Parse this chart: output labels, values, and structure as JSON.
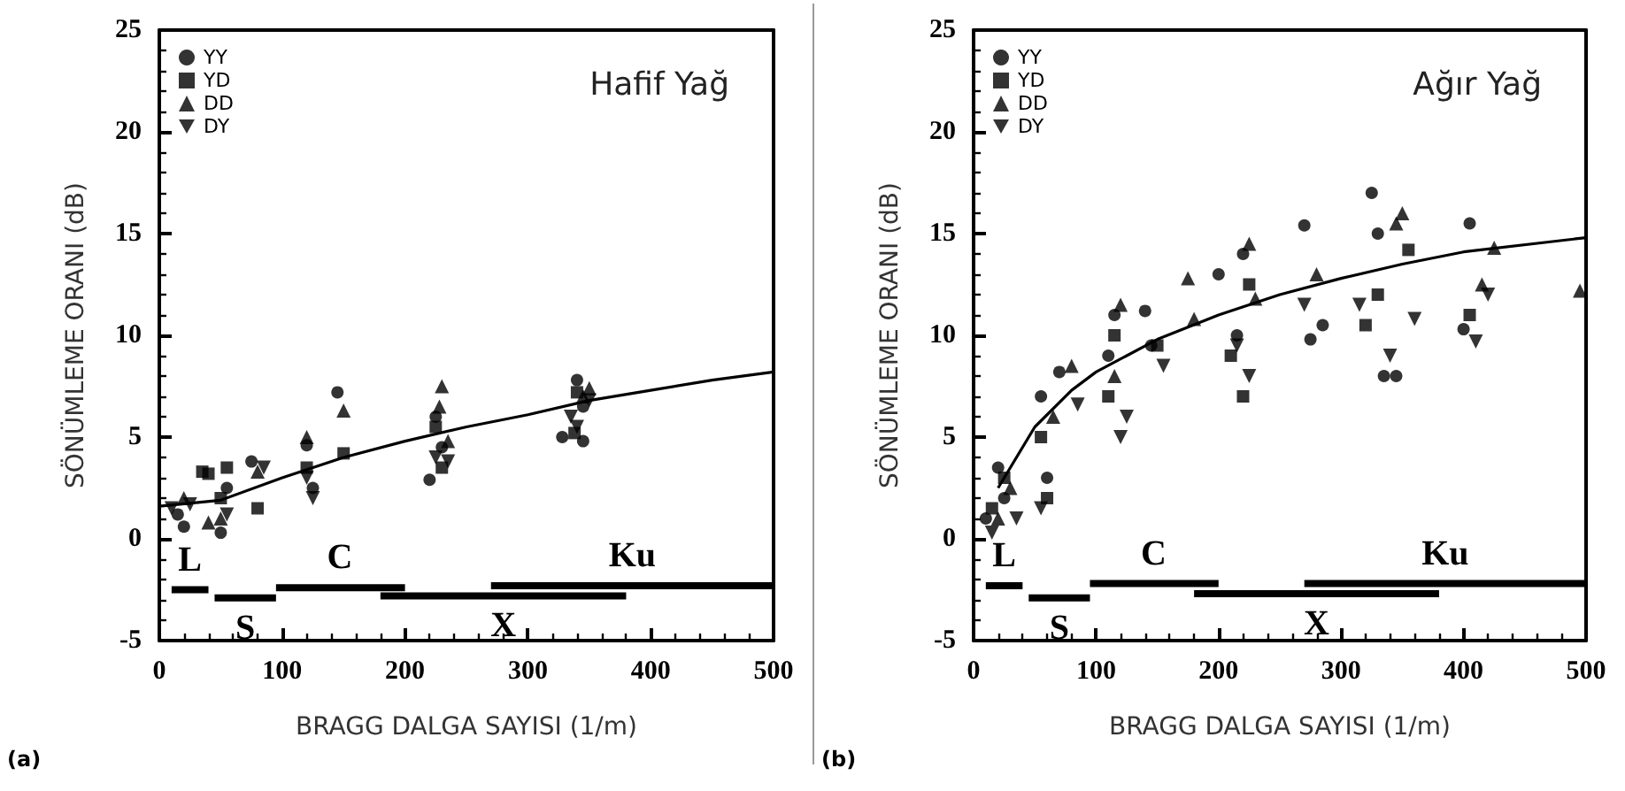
{
  "chart_data": [
    {
      "type": "scatter",
      "title": "Hafif Yağ",
      "xlabel": "BRAGG DALGA SAYISI (1/m)",
      "ylabel": "SÖNÜMLEME ORANI (dB)",
      "xlim": [
        0,
        500
      ],
      "ylim": [
        -5,
        25
      ],
      "xticks": [
        0,
        100,
        200,
        300,
        400,
        500
      ],
      "yticks": [
        -5,
        0,
        5,
        10,
        15,
        20,
        25
      ],
      "grid": false,
      "legend": "top left",
      "annotations": [
        "(a)",
        {
          "text": "L",
          "x": 25,
          "y": -2.5
        },
        {
          "text": "S",
          "x": 70,
          "y": -2.9
        },
        {
          "text": "C",
          "x": 147,
          "y": -2.4
        },
        {
          "text": "X",
          "x": 280,
          "y": -2.8
        },
        {
          "text": "Ku",
          "x": 385,
          "y": -2.3
        }
      ],
      "series": [
        {
          "name": "YY",
          "marker": "circle",
          "color": "#000000",
          "x": [
            15,
            20,
            50,
            55,
            75,
            120,
            125,
            145,
            220,
            225,
            230,
            328,
            340,
            345,
            345
          ],
          "values": [
            1.2,
            0.6,
            0.3,
            2.5,
            3.8,
            4.6,
            2.5,
            7.2,
            2.9,
            6.0,
            4.5,
            5.0,
            7.8,
            6.5,
            4.8
          ]
        },
        {
          "name": "YD",
          "marker": "square",
          "color": "#000000",
          "x": [
            35,
            40,
            50,
            55,
            80,
            120,
            150,
            225,
            230,
            340,
            338
          ],
          "values": [
            3.3,
            3.2,
            2.0,
            3.5,
            1.5,
            3.5,
            4.2,
            5.5,
            3.5,
            7.2,
            5.2
          ]
        },
        {
          "name": "DD",
          "marker": "triangle",
          "color": "#000000",
          "x": [
            20,
            40,
            50,
            80,
            120,
            150,
            230,
            228,
            235,
            345,
            350
          ],
          "values": [
            2.0,
            0.8,
            1.0,
            3.3,
            5.0,
            6.3,
            7.5,
            6.5,
            4.8,
            7.0,
            7.4
          ]
        },
        {
          "name": "DY",
          "marker": "triangle-down",
          "color": "#000000",
          "x": [
            10,
            25,
            55,
            85,
            120,
            125,
            225,
            235,
            335,
            350,
            340
          ],
          "values": [
            1.5,
            1.7,
            1.2,
            3.5,
            3.0,
            2.0,
            4.0,
            3.8,
            6.0,
            6.8,
            5.5
          ]
        },
        {
          "type": "line",
          "marker": "none",
          "line_style": "solid",
          "color": "#000000",
          "x": [
            0,
            50,
            100,
            150,
            200,
            250,
            300,
            350,
            400,
            450,
            500
          ],
          "values": [
            1.6,
            1.9,
            3.0,
            4.0,
            4.8,
            5.5,
            6.1,
            6.8,
            7.3,
            7.8,
            8.2
          ]
        },
        {
          "type": "line",
          "marker": "none",
          "line_style": "solid",
          "color": "#000000",
          "x": [
            10,
            40
          ],
          "values": [
            -2.5,
            -2.5
          ]
        },
        {
          "type": "line",
          "marker": "none",
          "line_style": "solid",
          "color": "#000000",
          "x": [
            45,
            95
          ],
          "values": [
            -2.9,
            -2.9
          ]
        },
        {
          "type": "line",
          "marker": "none",
          "line_style": "solid",
          "color": "#000000",
          "x": [
            95,
            200
          ],
          "values": [
            -2.4,
            -2.4
          ]
        },
        {
          "type": "line",
          "marker": "none",
          "line_style": "solid",
          "color": "#000000",
          "x": [
            180,
            380
          ],
          "values": [
            -2.8,
            -2.8
          ]
        },
        {
          "type": "line",
          "marker": "none",
          "line_style": "solid",
          "color": "#000000",
          "x": [
            270,
            500
          ],
          "values": [
            -2.3,
            -2.3
          ]
        }
      ]
    },
    {
      "type": "scatter",
      "title": "Ağır Yağ",
      "xlabel": "BRAGG DALGA SAYISI (1/m)",
      "ylabel": "SÖNÜMLEME ORANI (dB)",
      "xlim": [
        0,
        500
      ],
      "ylim": [
        -5,
        25
      ],
      "xticks": [
        0,
        100,
        200,
        300,
        400,
        500
      ],
      "yticks": [
        -5,
        0,
        5,
        10,
        15,
        20,
        25
      ],
      "grid": false,
      "legend": "top left",
      "annotations": [
        "(b)",
        {
          "text": "L",
          "x": 25,
          "y": -2.3
        },
        {
          "text": "S",
          "x": 70,
          "y": -2.9
        },
        {
          "text": "C",
          "x": 147,
          "y": -2.2
        },
        {
          "text": "X",
          "x": 280,
          "y": -2.7
        },
        {
          "text": "Ku",
          "x": 385,
          "y": -2.2
        }
      ],
      "series": [
        {
          "name": "YY",
          "marker": "circle",
          "color": "#000000",
          "x": [
            10,
            20,
            25,
            55,
            60,
            70,
            110,
            115,
            140,
            145,
            200,
            215,
            220,
            270,
            275,
            285,
            325,
            330,
            335,
            345,
            405,
            400
          ],
          "values": [
            1.0,
            3.5,
            2.0,
            7.0,
            3.0,
            8.2,
            9.0,
            11.0,
            11.2,
            9.5,
            13.0,
            10.0,
            14.0,
            15.4,
            9.8,
            10.5,
            17.0,
            15.0,
            8.0,
            8.0,
            15.5,
            10.3
          ]
        },
        {
          "name": "YD",
          "marker": "square",
          "color": "#000000",
          "x": [
            15,
            25,
            55,
            60,
            110,
            115,
            150,
            210,
            220,
            225,
            330,
            320,
            355,
            405
          ],
          "values": [
            1.5,
            3.0,
            5.0,
            2.0,
            7.0,
            10.0,
            9.5,
            9.0,
            7.0,
            12.5,
            12.0,
            10.5,
            14.2,
            11.0
          ]
        },
        {
          "name": "DD",
          "marker": "triangle",
          "color": "#000000",
          "x": [
            20,
            30,
            65,
            80,
            115,
            120,
            175,
            180,
            225,
            230,
            280,
            350,
            345,
            415,
            425,
            495
          ],
          "values": [
            1.0,
            2.5,
            6.0,
            8.5,
            8.0,
            11.5,
            12.8,
            10.8,
            14.5,
            11.8,
            13.0,
            16.0,
            15.5,
            12.5,
            14.3,
            12.2
          ]
        },
        {
          "name": "DY",
          "marker": "triangle-down",
          "color": "#000000",
          "x": [
            15,
            35,
            55,
            85,
            120,
            125,
            155,
            225,
            215,
            270,
            315,
            360,
            340,
            410,
            420
          ],
          "values": [
            0.3,
            1.0,
            1.5,
            6.6,
            5.0,
            6.0,
            8.5,
            8.0,
            9.5,
            11.5,
            11.5,
            10.8,
            9.0,
            9.7,
            12.0
          ]
        },
        {
          "type": "line",
          "marker": "none",
          "line_style": "solid",
          "color": "#000000",
          "x": [
            20,
            50,
            80,
            100,
            150,
            200,
            250,
            300,
            350,
            400,
            500
          ],
          "values": [
            2.5,
            5.5,
            7.3,
            8.2,
            9.8,
            11.0,
            12.0,
            12.8,
            13.5,
            14.1,
            14.8
          ]
        },
        {
          "type": "line",
          "marker": "none",
          "line_style": "solid",
          "color": "#000000",
          "x": [
            10,
            40
          ],
          "values": [
            -2.3,
            -2.3
          ]
        },
        {
          "type": "line",
          "marker": "none",
          "line_style": "solid",
          "color": "#000000",
          "x": [
            45,
            95
          ],
          "values": [
            -2.9,
            -2.9
          ]
        },
        {
          "type": "line",
          "marker": "none",
          "line_style": "solid",
          "color": "#000000",
          "x": [
            95,
            200
          ],
          "values": [
            -2.2,
            -2.2
          ]
        },
        {
          "type": "line",
          "marker": "none",
          "line_style": "solid",
          "color": "#000000",
          "x": [
            180,
            380
          ],
          "values": [
            -2.7,
            -2.7
          ]
        },
        {
          "type": "line",
          "marker": "none",
          "line_style": "solid",
          "color": "#000000",
          "x": [
            270,
            500
          ],
          "values": [
            -2.2,
            -2.2
          ]
        }
      ]
    }
  ]
}
